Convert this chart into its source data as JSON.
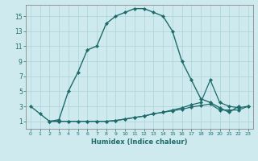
{
  "xlabel": "Humidex (Indice chaleur)",
  "xlim": [
    -0.5,
    23.5
  ],
  "ylim": [
    0,
    16.5
  ],
  "xticks": [
    0,
    1,
    2,
    3,
    4,
    5,
    6,
    7,
    8,
    9,
    10,
    11,
    12,
    13,
    14,
    15,
    16,
    17,
    18,
    19,
    20,
    21,
    22,
    23
  ],
  "yticks": [
    1,
    3,
    5,
    7,
    9,
    11,
    13,
    15
  ],
  "bg_color": "#ceeaee",
  "line_color": "#1e6b6b",
  "grid_color": "#b0d8dc",
  "line1_x": [
    0,
    1,
    2,
    3,
    4,
    5,
    6,
    7,
    8,
    9,
    10,
    11,
    12,
    13,
    14,
    15,
    16,
    17,
    18,
    19,
    20,
    21,
    22
  ],
  "line1_y": [
    3,
    2,
    1,
    1.2,
    5,
    7.5,
    10.5,
    11,
    14,
    15,
    15.5,
    16,
    16,
    15.5,
    15,
    13,
    9,
    6.5,
    4,
    3.5,
    2.8,
    2.2,
    3
  ],
  "line2_x": [
    2,
    3,
    4,
    5,
    6,
    7,
    8,
    9,
    10,
    11,
    12,
    13,
    14,
    15,
    16,
    17,
    18,
    19,
    20,
    21,
    22,
    23
  ],
  "line2_y": [
    1,
    1,
    1,
    1,
    1,
    1,
    1,
    1.1,
    1.3,
    1.5,
    1.7,
    2.0,
    2.2,
    2.5,
    2.8,
    3.2,
    3.5,
    6.5,
    3.5,
    3.0,
    2.8,
    3.0
  ],
  "line3_x": [
    2,
    3,
    4,
    5,
    6,
    7,
    8,
    9,
    10,
    11,
    12,
    13,
    14,
    15,
    16,
    17,
    18,
    19,
    20,
    21,
    22,
    23
  ],
  "line3_y": [
    1,
    1,
    1,
    1,
    1,
    1,
    1,
    1.1,
    1.3,
    1.5,
    1.7,
    2.0,
    2.2,
    2.4,
    2.6,
    2.9,
    3.1,
    3.3,
    2.5,
    2.5,
    2.5,
    3.0
  ]
}
